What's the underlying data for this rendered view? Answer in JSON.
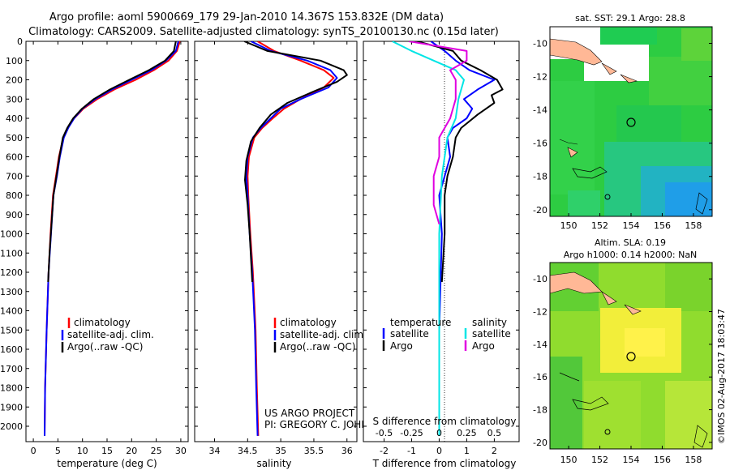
{
  "title": {
    "line1": "Argo profile: aoml 5900669_179 29-Jan-2010 14.367S 153.832E (DM data)",
    "line2": "Climatology: CARS2009. Satellite-adjusted climatology: synTS_20100130.nc (0.15d later)"
  },
  "maps": {
    "sst_title": "sat. SST: 29.1 Argo: 28.8",
    "sla_title1": "Altim. SLA: 0.19",
    "sla_title2": "Argo h1000: 0.14 h2000: NaN",
    "x_ticks": [
      "150",
      "152",
      "154",
      "156",
      "158"
    ],
    "y_ticks": [
      "-10",
      "-12",
      "-14",
      "-16",
      "-18",
      "-20"
    ]
  },
  "project": {
    "line1": "US ARGO PROJECT",
    "line2": "PI: GREGORY C. JOHNSON"
  },
  "watermark": "©IMOS 02-Aug-2017 18:03:47",
  "colors": {
    "climatology": "#ff0000",
    "satellite": "#0000ff",
    "argo": "#000000",
    "sat_salinity": "#00e5e5",
    "argo_salinity": "#e000e0",
    "land": "#ffb896"
  },
  "chart_data": [
    {
      "type": "line",
      "id": "temperature",
      "xlabel": "temperature (deg C)",
      "xlim": [
        -1.5,
        31.5
      ],
      "x_ticks": [
        0,
        5,
        10,
        15,
        20,
        25,
        30
      ],
      "ylim": [
        2080,
        0
      ],
      "y_ticks": [
        0,
        100,
        200,
        300,
        400,
        500,
        600,
        700,
        800,
        900,
        1000,
        1100,
        1200,
        1300,
        1400,
        1500,
        1600,
        1700,
        1800,
        1900,
        2000
      ],
      "legend": [
        "climatology",
        "satellite-adj. clim.",
        "Argo(..raw -QC)"
      ],
      "series": [
        {
          "name": "climatology",
          "color": "#ff0000",
          "x": [
            29.8,
            29.2,
            27.5,
            24.5,
            20.8,
            16.5,
            13.0,
            10.2,
            8.3,
            7.0,
            6.1,
            5.2,
            4.6,
            4.0,
            3.5,
            3.1,
            2.7,
            2.4,
            2.3
          ],
          "y": [
            0,
            50,
            100,
            150,
            200,
            250,
            300,
            350,
            400,
            450,
            500,
            600,
            700,
            800,
            1000,
            1200,
            1500,
            1800,
            2050
          ]
        },
        {
          "name": "satellite",
          "color": "#0000ff",
          "x": [
            29.5,
            29.0,
            27.0,
            24.0,
            20.0,
            16.0,
            12.6,
            10.0,
            8.3,
            7.1,
            6.2,
            5.4,
            4.8,
            4.1,
            3.6,
            3.1,
            2.7,
            2.4,
            2.3
          ],
          "y": [
            0,
            50,
            100,
            150,
            200,
            250,
            300,
            350,
            400,
            450,
            500,
            600,
            700,
            800,
            1000,
            1200,
            1500,
            1800,
            2050
          ]
        },
        {
          "name": "argo",
          "color": "#000000",
          "x": [
            29.0,
            28.6,
            26.8,
            23.5,
            19.5,
            15.6,
            12.3,
            9.9,
            8.1,
            6.9,
            6.0,
            5.3,
            4.7,
            4.1,
            3.7,
            3.3,
            3.0
          ],
          "y": [
            0,
            50,
            100,
            150,
            200,
            250,
            300,
            350,
            400,
            450,
            500,
            600,
            700,
            800,
            950,
            1100,
            1250
          ]
        }
      ]
    },
    {
      "type": "line",
      "id": "salinity",
      "xlabel": "salinity",
      "xlim": [
        33.7,
        36.15
      ],
      "x_ticks": [
        34,
        34.5,
        35,
        35.5,
        36
      ],
      "ylim": [
        2080,
        0
      ],
      "legend": [
        "climatology",
        "satellite-adj. clim.",
        "Argo(..raw -QC)"
      ],
      "series": [
        {
          "name": "climatology",
          "color": "#ff0000",
          "x": [
            34.65,
            34.9,
            35.3,
            35.65,
            35.8,
            35.65,
            35.3,
            35.05,
            34.88,
            34.72,
            34.6,
            34.52,
            34.5,
            34.51,
            34.54,
            34.58,
            34.62,
            34.64,
            34.66
          ],
          "y": [
            0,
            50,
            100,
            150,
            190,
            240,
            300,
            350,
            400,
            450,
            500,
            600,
            700,
            800,
            1000,
            1200,
            1500,
            1800,
            2050
          ]
        },
        {
          "name": "satellite",
          "color": "#0000ff",
          "x": [
            34.55,
            34.85,
            35.4,
            35.75,
            35.85,
            35.72,
            35.3,
            35.0,
            34.85,
            34.7,
            34.58,
            34.5,
            34.48,
            34.5,
            34.53,
            34.57,
            34.61,
            34.63,
            34.65
          ],
          "y": [
            0,
            50,
            100,
            150,
            190,
            240,
            300,
            350,
            400,
            450,
            500,
            600,
            700,
            800,
            1000,
            1200,
            1500,
            1800,
            2050
          ]
        },
        {
          "name": "argo",
          "color": "#000000",
          "x": [
            34.45,
            34.8,
            35.6,
            35.95,
            36.0,
            35.85,
            35.5,
            35.1,
            34.85,
            34.68,
            34.55,
            34.48,
            34.46,
            34.5,
            34.53,
            34.57
          ],
          "y": [
            0,
            50,
            100,
            150,
            175,
            210,
            260,
            320,
            380,
            450,
            520,
            620,
            720,
            850,
            1000,
            1250
          ]
        }
      ]
    },
    {
      "type": "line",
      "id": "difference",
      "xlabel": "T difference from climatology",
      "xlabel2": "S difference from climatology",
      "xlim": [
        -2.75,
        2.9
      ],
      "x_ticks": [
        -2,
        -1,
        0,
        1,
        2
      ],
      "x_ticks_salinity": [
        "-0.5",
        "-0.25",
        "0",
        "0.25",
        "0.5"
      ],
      "ylim": [
        2080,
        0
      ],
      "legend_temperature": {
        "heading": "temperature",
        "items": [
          "satellite",
          "Argo"
        ]
      },
      "legend_salinity": {
        "heading": "salinity",
        "items": [
          "satellite",
          "Argo"
        ]
      },
      "series": [
        {
          "name": "T satellite",
          "color": "#0000ff",
          "x": [
            -0.3,
            0.2,
            0.6,
            1.1,
            2.0,
            1.4,
            0.9,
            1.2,
            1.0,
            0.5,
            0.3,
            0.4,
            0.2,
            0.0,
            0.1,
            0.0,
            0.0
          ],
          "y": [
            0,
            50,
            100,
            150,
            200,
            250,
            300,
            350,
            400,
            450,
            500,
            600,
            700,
            800,
            1000,
            1500,
            2050
          ]
        },
        {
          "name": "T argo",
          "color": "#000000",
          "x": [
            -0.8,
            0.5,
            0.8,
            1.5,
            2.1,
            2.3,
            1.9,
            2.0,
            1.4,
            0.8,
            0.6,
            0.5,
            0.3,
            0.2,
            0.2,
            0.1
          ],
          "y": [
            0,
            50,
            100,
            150,
            200,
            250,
            280,
            320,
            380,
            450,
            500,
            600,
            700,
            800,
            1000,
            1250
          ]
        },
        {
          "name": "S satellite",
          "color": "#00e5e5",
          "x": [
            -1.7,
            -1.0,
            -0.2,
            0.6,
            0.9,
            0.7,
            0.6,
            0.3,
            0.1,
            0.0,
            0.0,
            0.0
          ],
          "y": [
            0,
            50,
            100,
            150,
            200,
            300,
            400,
            500,
            700,
            1000,
            1500,
            2050
          ]
        },
        {
          "name": "S argo",
          "color": "#e000e0",
          "x": [
            -1.1,
            1.0,
            1.0,
            0.4,
            0.6,
            0.6,
            0.4,
            0.0,
            0.0,
            -0.2,
            -0.2,
            0.0
          ],
          "y": [
            0,
            50,
            100,
            150,
            200,
            300,
            400,
            500,
            600,
            700,
            850,
            950
          ]
        }
      ]
    }
  ]
}
